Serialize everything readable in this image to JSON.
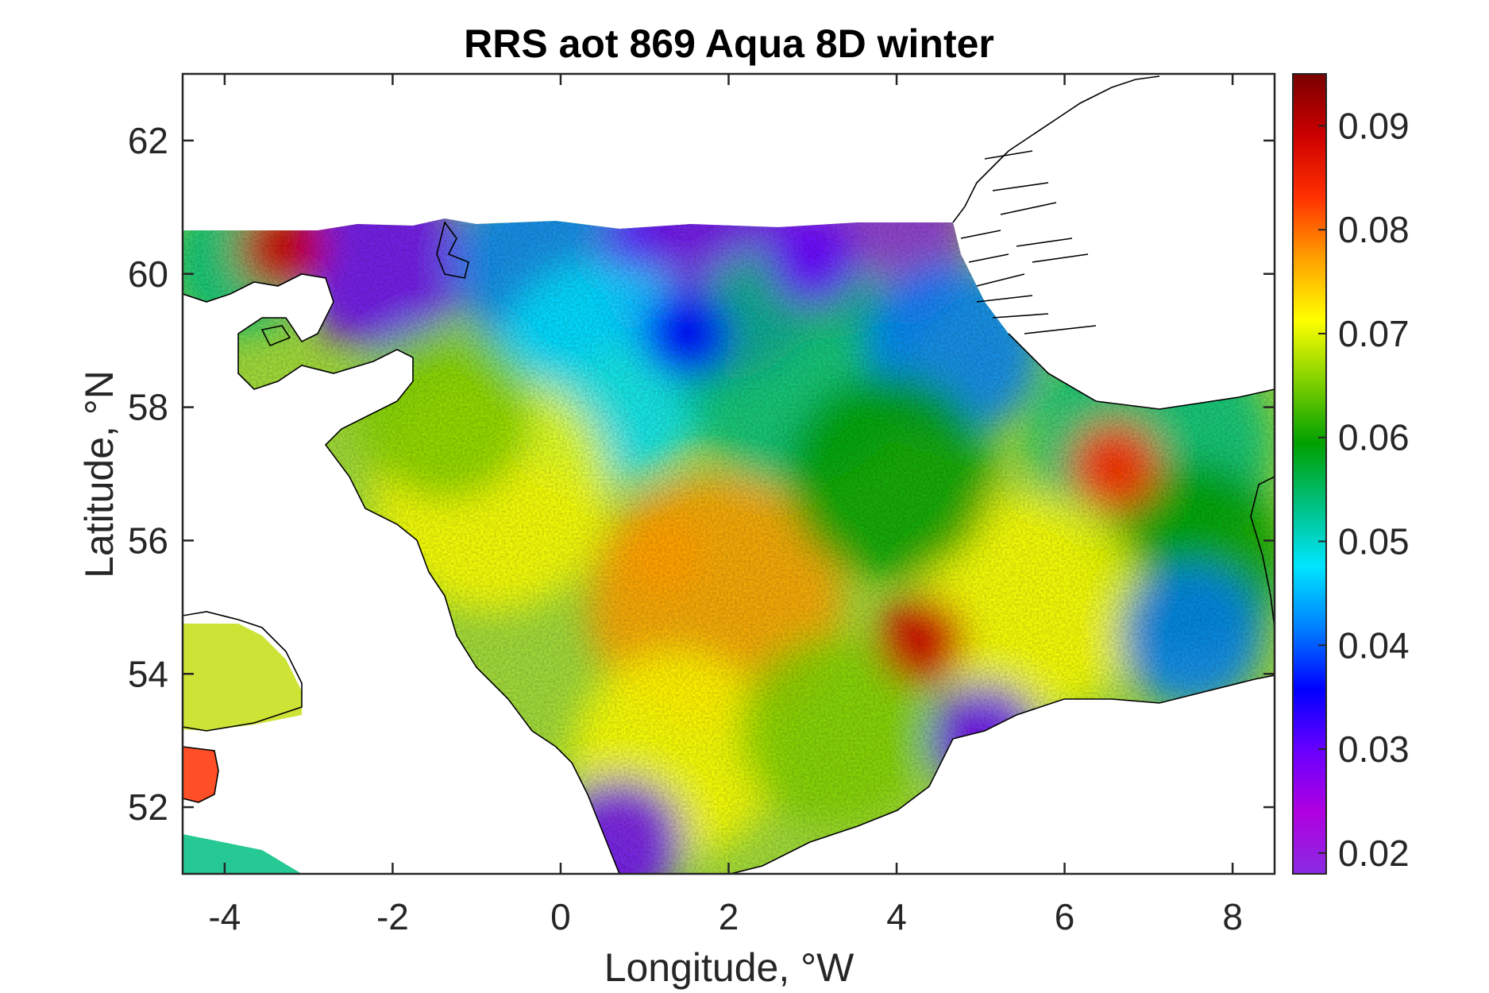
{
  "chart_data": {
    "type": "heatmap",
    "title": "RRS aot 869 Aqua 8D winter",
    "xlabel": "Longitude, °W",
    "ylabel": "Latitude, °N",
    "xlim": [
      -4.5,
      8.5
    ],
    "ylim": [
      51,
      63
    ],
    "x_ticks": [
      "-4",
      "-2",
      "0",
      "2",
      "4",
      "6",
      "8"
    ],
    "y_ticks": [
      "52",
      "54",
      "56",
      "58",
      "60",
      "62"
    ],
    "colorbar": {
      "range": [
        0.018,
        0.095
      ],
      "ticks": [
        "0.02",
        "0.03",
        "0.04",
        "0.05",
        "0.06",
        "0.07",
        "0.08",
        "0.09"
      ],
      "colors": [
        "#8a2be2",
        "#b000e0",
        "#6a00ff",
        "#0000ff",
        "#0080ff",
        "#00e5ff",
        "#00c080",
        "#00a000",
        "#80d000",
        "#ffff00",
        "#ffa000",
        "#ff3000",
        "#cc0000",
        "#7a0000"
      ]
    },
    "field": [
      {
        "lon": 1.2,
        "lat": 55.8,
        "value": 0.08
      },
      {
        "lon": 4.3,
        "lat": 54.5,
        "value": 0.092
      },
      {
        "lon": 6.6,
        "lat": 57.1,
        "value": 0.082
      },
      {
        "lon": 1.5,
        "lat": 59.1,
        "value": 0.035
      },
      {
        "lon": 3.0,
        "lat": 60.2,
        "value": 0.028
      },
      {
        "lon": -3.3,
        "lat": 60.4,
        "value": 0.09
      },
      {
        "lon": -4.0,
        "lat": 53.9,
        "value": 0.075
      },
      {
        "lon": -4.2,
        "lat": 52.4,
        "value": 0.085
      }
    ]
  }
}
